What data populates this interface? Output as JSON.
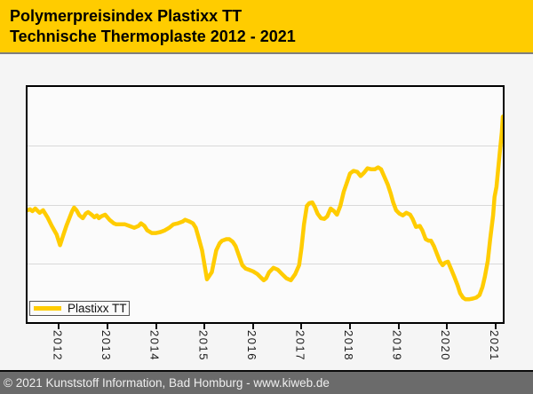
{
  "header": {
    "title_line1": "Polymerpreisindex Plastixx TT",
    "title_line2": "Technische Thermoplaste 2012 - 2021"
  },
  "legend": {
    "label": "Plastixx TT"
  },
  "footer": {
    "text": "© 2021 Kunststoff Information, Bad Homburg - www.kiweb.de"
  },
  "colors": {
    "header_bg": "#FFCC00",
    "line": "#FFCC00",
    "footer_bg": "#6B6B6B",
    "page_bg": "#F5F5F5",
    "plot_bg": "#FBFBFB",
    "gridline": "#D9D9D9",
    "plot_border": "#000000"
  },
  "chart_data": {
    "type": "line",
    "title": "Polymerpreisindex Plastixx TT — Technische Thermoplaste 2012 - 2021",
    "xlabel": "",
    "ylabel": "",
    "y_axis_labeled": false,
    "y_unit": "percent of plot height above bottom frame (no y tick labels shown in image)",
    "x_range": [
      2011.35,
      2021.15
    ],
    "y_range": [
      0,
      100
    ],
    "gridlines_percent": [
      25,
      50,
      75
    ],
    "legend_position": "bottom-left",
    "x_tick_labels": [
      "2012",
      "2013",
      "2014",
      "2015",
      "2016",
      "2017",
      "2018",
      "2019",
      "2020",
      "2021"
    ],
    "x_tick_years": [
      2012,
      2013,
      2014,
      2015,
      2016,
      2017,
      2018,
      2019,
      2020,
      2021
    ],
    "series": [
      {
        "name": "Plastixx TT",
        "points": [
          [
            2011.35,
            47.6
          ],
          [
            2011.4,
            48.0
          ],
          [
            2011.45,
            47.2
          ],
          [
            2011.51,
            48.3
          ],
          [
            2011.6,
            46.5
          ],
          [
            2011.67,
            47.6
          ],
          [
            2011.76,
            44.6
          ],
          [
            2011.85,
            40.9
          ],
          [
            2011.95,
            37.2
          ],
          [
            2012.02,
            32.7
          ],
          [
            2012.09,
            37.2
          ],
          [
            2012.15,
            40.9
          ],
          [
            2012.22,
            44.6
          ],
          [
            2012.27,
            47.2
          ],
          [
            2012.31,
            48.7
          ],
          [
            2012.36,
            47.6
          ],
          [
            2012.42,
            45.4
          ],
          [
            2012.49,
            44.2
          ],
          [
            2012.55,
            46.1
          ],
          [
            2012.6,
            46.8
          ],
          [
            2012.67,
            45.7
          ],
          [
            2012.73,
            44.6
          ],
          [
            2012.78,
            45.4
          ],
          [
            2012.82,
            44.2
          ],
          [
            2012.87,
            45.0
          ],
          [
            2012.95,
            45.7
          ],
          [
            2013.04,
            43.5
          ],
          [
            2013.13,
            42.0
          ],
          [
            2013.18,
            41.6
          ],
          [
            2013.27,
            41.6
          ],
          [
            2013.36,
            41.6
          ],
          [
            2013.45,
            40.9
          ],
          [
            2013.55,
            40.1
          ],
          [
            2013.64,
            40.9
          ],
          [
            2013.69,
            42.0
          ],
          [
            2013.76,
            40.9
          ],
          [
            2013.82,
            39.0
          ],
          [
            2013.91,
            37.9
          ],
          [
            2014.0,
            37.9
          ],
          [
            2014.09,
            38.3
          ],
          [
            2014.18,
            39.0
          ],
          [
            2014.27,
            40.1
          ],
          [
            2014.36,
            41.6
          ],
          [
            2014.45,
            42.0
          ],
          [
            2014.55,
            42.8
          ],
          [
            2014.6,
            43.5
          ],
          [
            2014.69,
            42.8
          ],
          [
            2014.76,
            42.0
          ],
          [
            2014.82,
            40.1
          ],
          [
            2014.87,
            36.4
          ],
          [
            2014.95,
            30.5
          ],
          [
            2015.0,
            24.2
          ],
          [
            2015.05,
            18.2
          ],
          [
            2015.15,
            21.2
          ],
          [
            2015.24,
            30.5
          ],
          [
            2015.31,
            33.5
          ],
          [
            2015.36,
            34.6
          ],
          [
            2015.45,
            35.3
          ],
          [
            2015.51,
            35.3
          ],
          [
            2015.58,
            34.2
          ],
          [
            2015.64,
            32.3
          ],
          [
            2015.73,
            27.1
          ],
          [
            2015.78,
            24.2
          ],
          [
            2015.85,
            22.7
          ],
          [
            2015.91,
            22.3
          ],
          [
            2016.0,
            21.6
          ],
          [
            2016.09,
            20.4
          ],
          [
            2016.16,
            19.0
          ],
          [
            2016.22,
            17.8
          ],
          [
            2016.27,
            18.6
          ],
          [
            2016.33,
            21.2
          ],
          [
            2016.42,
            23.1
          ],
          [
            2016.51,
            22.3
          ],
          [
            2016.6,
            20.4
          ],
          [
            2016.69,
            18.6
          ],
          [
            2016.78,
            17.8
          ],
          [
            2016.87,
            20.4
          ],
          [
            2016.95,
            24.2
          ],
          [
            2017.0,
            31.6
          ],
          [
            2017.05,
            41.6
          ],
          [
            2017.11,
            49.4
          ],
          [
            2017.16,
            50.6
          ],
          [
            2017.22,
            50.9
          ],
          [
            2017.27,
            49.1
          ],
          [
            2017.33,
            46.1
          ],
          [
            2017.4,
            44.2
          ],
          [
            2017.47,
            43.9
          ],
          [
            2017.53,
            45.0
          ],
          [
            2017.6,
            48.3
          ],
          [
            2017.67,
            47.2
          ],
          [
            2017.73,
            45.7
          ],
          [
            2017.8,
            49.4
          ],
          [
            2017.87,
            55.4
          ],
          [
            2017.95,
            60.2
          ],
          [
            2018.0,
            63.2
          ],
          [
            2018.07,
            64.3
          ],
          [
            2018.15,
            63.9
          ],
          [
            2018.22,
            62.1
          ],
          [
            2018.29,
            63.6
          ],
          [
            2018.36,
            65.4
          ],
          [
            2018.44,
            65.0
          ],
          [
            2018.51,
            65.0
          ],
          [
            2018.58,
            65.8
          ],
          [
            2018.64,
            65.0
          ],
          [
            2018.71,
            61.7
          ],
          [
            2018.78,
            58.4
          ],
          [
            2018.84,
            54.6
          ],
          [
            2018.89,
            50.9
          ],
          [
            2018.95,
            47.6
          ],
          [
            2019.02,
            46.1
          ],
          [
            2019.09,
            45.4
          ],
          [
            2019.16,
            46.5
          ],
          [
            2019.24,
            45.7
          ],
          [
            2019.29,
            43.9
          ],
          [
            2019.36,
            40.5
          ],
          [
            2019.44,
            40.9
          ],
          [
            2019.49,
            39.0
          ],
          [
            2019.56,
            35.3
          ],
          [
            2019.62,
            34.6
          ],
          [
            2019.67,
            34.6
          ],
          [
            2019.73,
            32.3
          ],
          [
            2019.78,
            29.7
          ],
          [
            2019.85,
            26.0
          ],
          [
            2019.91,
            24.2
          ],
          [
            2019.96,
            25.3
          ],
          [
            2020.02,
            25.7
          ],
          [
            2020.09,
            22.3
          ],
          [
            2020.15,
            19.3
          ],
          [
            2020.22,
            15.6
          ],
          [
            2020.27,
            12.3
          ],
          [
            2020.33,
            10.4
          ],
          [
            2020.38,
            9.7
          ],
          [
            2020.45,
            9.7
          ],
          [
            2020.53,
            10.0
          ],
          [
            2020.6,
            10.4
          ],
          [
            2020.67,
            11.5
          ],
          [
            2020.73,
            14.9
          ],
          [
            2020.78,
            19.3
          ],
          [
            2020.84,
            26.0
          ],
          [
            2020.89,
            35.3
          ],
          [
            2020.95,
            45.4
          ],
          [
            2020.98,
            53.2
          ],
          [
            2021.02,
            57.6
          ],
          [
            2021.05,
            63.9
          ],
          [
            2021.09,
            72.5
          ],
          [
            2021.13,
            80.7
          ],
          [
            2021.15,
            87.4
          ]
        ]
      }
    ]
  }
}
